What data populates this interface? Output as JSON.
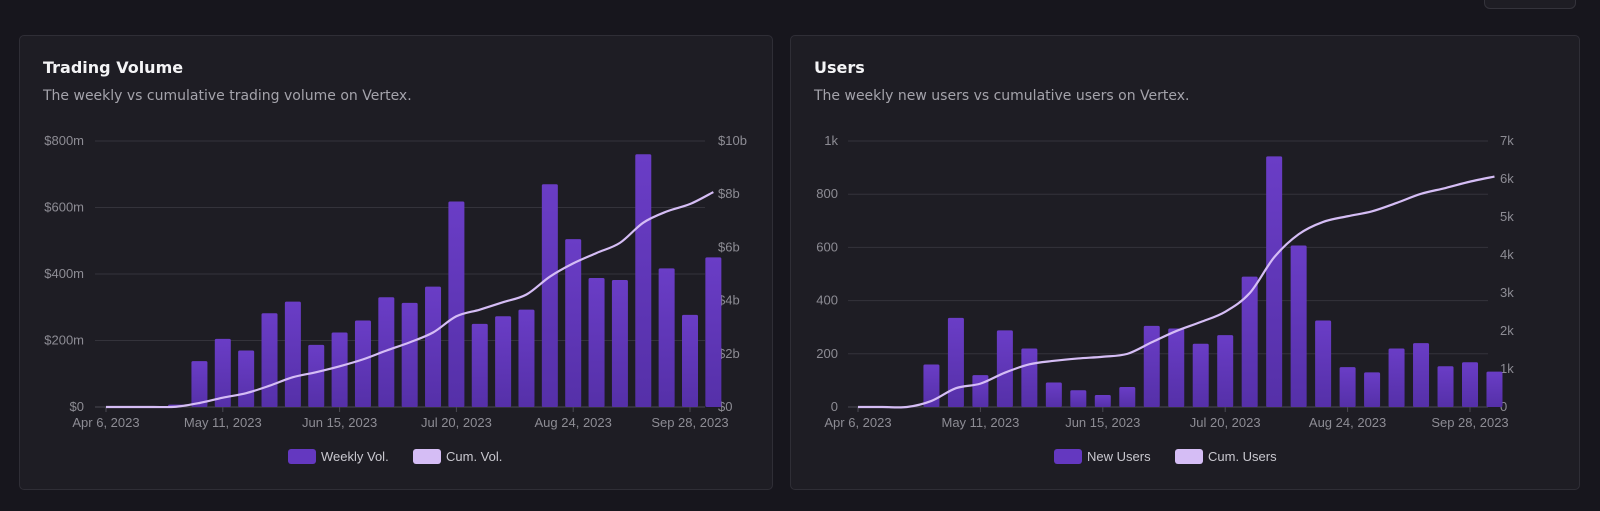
{
  "colors": {
    "background": "#17161d",
    "card": "#1e1d24",
    "bar": "#6438c0",
    "line": "#d5bdf5",
    "grid": "#34333b",
    "text": "#8d8c94"
  },
  "charts": [
    {
      "title": "Trading Volume",
      "subtitle": "The weekly vs cumulative trading volume on Vertex.",
      "chart_data": {
        "type": "bar",
        "x": [
          "Apr 6, 2023",
          "Apr 13, 2023",
          "Apr 20, 2023",
          "Apr 27, 2023",
          "May 4, 2023",
          "May 11, 2023",
          "May 18, 2023",
          "May 25, 2023",
          "Jun 1, 2023",
          "Jun 8, 2023",
          "Jun 15, 2023",
          "Jun 22, 2023",
          "Jun 29, 2023",
          "Jul 6, 2023",
          "Jul 13, 2023",
          "Jul 20, 2023",
          "Jul 27, 2023",
          "Aug 3, 2023",
          "Aug 10, 2023",
          "Aug 17, 2023",
          "Aug 24, 2023",
          "Aug 31, 2023",
          "Sep 7, 2023",
          "Sep 14, 2023",
          "Sep 21, 2023",
          "Sep 28, 2023",
          "Oct 5, 2023"
        ],
        "xticks": [
          "Apr 6, 2023",
          "May 11, 2023",
          "Jun 15, 2023",
          "Jul 20, 2023",
          "Aug 24, 2023",
          "Sep 28, 2023"
        ],
        "series": [
          {
            "name": "Weekly Vol.",
            "type": "bar",
            "axis": "left",
            "unit": "$m",
            "values": [
              0,
              0,
              0,
              7,
              138,
              205,
              170,
              282,
              317,
              187,
              224,
              260,
              330,
              313,
              362,
              618,
              250,
              273,
              293,
              670,
              505,
              388,
              382,
              760,
              417,
              277,
              450
            ]
          },
          {
            "name": "Cum. Vol.",
            "type": "line",
            "axis": "right",
            "unit": "$b",
            "values": [
              0,
              0,
              0,
              0.01,
              0.15,
              0.35,
              0.52,
              0.8,
              1.12,
              1.31,
              1.53,
              1.79,
              2.12,
              2.43,
              2.8,
              3.41,
              3.66,
              3.94,
              4.23,
              4.9,
              5.4,
              5.79,
              6.17,
              6.93,
              7.35,
              7.63,
              8.08
            ]
          }
        ],
        "yleft": {
          "range": [
            0,
            800
          ],
          "ticks": [
            0,
            200,
            400,
            600,
            800
          ],
          "labels": [
            "$0",
            "$200m",
            "$400m",
            "$600m",
            "$800m"
          ]
        },
        "yright": {
          "range": [
            0,
            10
          ],
          "ticks": [
            0,
            2,
            4,
            6,
            8,
            10
          ],
          "labels": [
            "$0",
            "$2b",
            "$4b",
            "$6b",
            "$8b",
            "$10b"
          ]
        },
        "grid": true,
        "legend": "bottom"
      }
    },
    {
      "title": "Users",
      "subtitle": "The weekly new users vs cumulative users on Vertex.",
      "chart_data": {
        "type": "bar",
        "x": [
          "Apr 6, 2023",
          "Apr 13, 2023",
          "Apr 20, 2023",
          "Apr 27, 2023",
          "May 4, 2023",
          "May 11, 2023",
          "May 18, 2023",
          "May 25, 2023",
          "Jun 1, 2023",
          "Jun 8, 2023",
          "Jun 15, 2023",
          "Jun 22, 2023",
          "Jun 29, 2023",
          "Jul 6, 2023",
          "Jul 13, 2023",
          "Jul 20, 2023",
          "Jul 27, 2023",
          "Aug 3, 2023",
          "Aug 10, 2023",
          "Aug 17, 2023",
          "Aug 24, 2023",
          "Aug 31, 2023",
          "Sep 7, 2023",
          "Sep 14, 2023",
          "Sep 21, 2023",
          "Sep 28, 2023",
          "Oct 5, 2023"
        ],
        "xticks": [
          "Apr 6, 2023",
          "May 11, 2023",
          "Jun 15, 2023",
          "Jul 20, 2023",
          "Aug 24, 2023",
          "Sep 28, 2023"
        ],
        "series": [
          {
            "name": "New Users",
            "type": "bar",
            "axis": "left",
            "values": [
              0,
              0,
              0,
              160,
              335,
              120,
              288,
              220,
              92,
              63,
              45,
              75,
              305,
              295,
              238,
              270,
              490,
              942,
              607,
              325,
              150,
              130,
              220,
              240,
              153,
              168,
              133
            ]
          },
          {
            "name": "Cum. Users",
            "type": "line",
            "axis": "right",
            "values": [
              0,
              0,
              0,
              160,
              495,
              615,
              903,
              1123,
              1215,
              1278,
              1323,
              1398,
              1703,
              1998,
              2236,
              2506,
              2996,
              3938,
              4545,
              4870,
              5020,
              5150,
              5370,
              5610,
              5763,
              5931,
              6064
            ]
          }
        ],
        "yleft": {
          "range": [
            0,
            1000
          ],
          "ticks": [
            0,
            200,
            400,
            600,
            800,
            1000
          ],
          "labels": [
            "0",
            "200",
            "400",
            "600",
            "800",
            "1k"
          ]
        },
        "yright": {
          "range": [
            0,
            7000
          ],
          "ticks": [
            0,
            1000,
            2000,
            3000,
            4000,
            5000,
            6000,
            7000
          ],
          "labels": [
            "0",
            "1k",
            "2k",
            "3k",
            "4k",
            "5k",
            "6k",
            "7k"
          ]
        },
        "grid": true,
        "legend": "bottom"
      }
    }
  ]
}
